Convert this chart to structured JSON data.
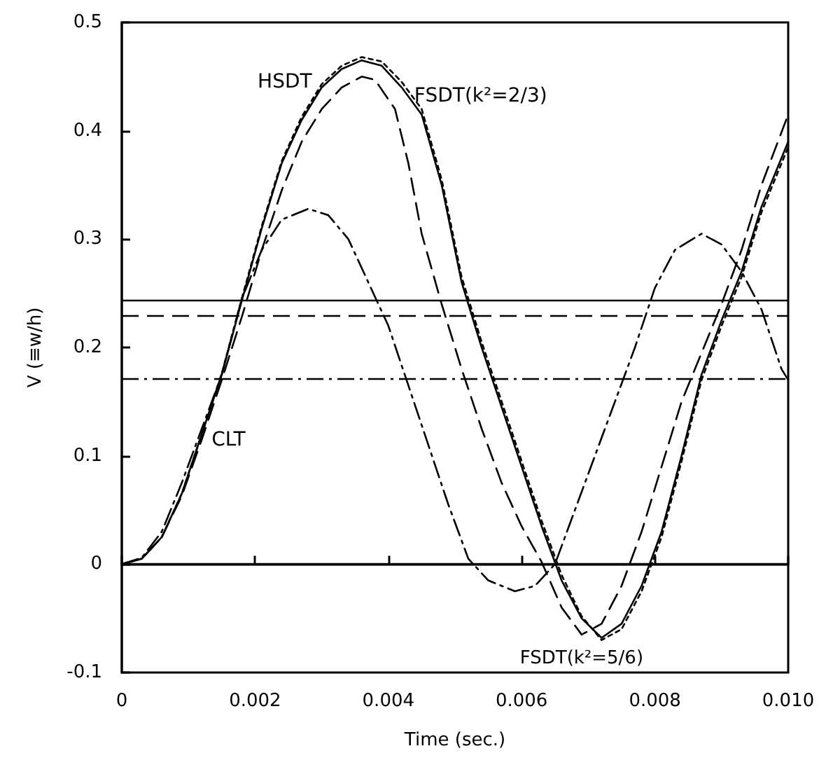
{
  "chart_data": {
    "type": "line",
    "xlabel": "Time (sec.)",
    "ylabel": "V (≡w/h)",
    "xlim": [
      0,
      0.01
    ],
    "ylim": [
      -0.1,
      0.5
    ],
    "xticks": [
      0,
      0.002,
      0.004,
      0.006,
      0.008,
      {
        "value": 0.01,
        "label": "0.010"
      }
    ],
    "yticks": [
      -0.1,
      0,
      0.1,
      0.2,
      0.3,
      0.4,
      0.5
    ],
    "grid": false,
    "legend": false,
    "marker": "none",
    "series": [
      {
        "name": "HSDT",
        "color": "#000000",
        "line_style": "solid",
        "x": [
          0,
          0.0003,
          0.0006,
          0.0009,
          0.0012,
          0.0015,
          0.0018,
          0.0021,
          0.0024,
          0.0027,
          0.003,
          0.0033,
          0.0036,
          0.0039,
          0.0042,
          0.0045,
          0.0048,
          0.0051,
          0.0054,
          0.0057,
          0.006,
          0.0063,
          0.0066,
          0.0069,
          0.0072,
          0.0075,
          0.0078,
          0.0081,
          0.0084,
          0.0087,
          0.009,
          0.0093,
          0.0096,
          0.01
        ],
        "values": [
          0,
          0.005,
          0.025,
          0.065,
          0.12,
          0.175,
          0.243,
          0.31,
          0.37,
          0.41,
          0.44,
          0.457,
          0.465,
          0.46,
          0.44,
          0.415,
          0.35,
          0.26,
          0.2,
          0.145,
          0.09,
          0.035,
          -0.015,
          -0.05,
          -0.068,
          -0.055,
          -0.02,
          0.03,
          0.1,
          0.175,
          0.225,
          0.27,
          0.33,
          0.39
        ]
      },
      {
        "name": "FSDT(k²=2/3)",
        "color": "#000000",
        "line_style": "dotted",
        "x": [
          0,
          0.0003,
          0.0006,
          0.0009,
          0.0012,
          0.0015,
          0.0018,
          0.0021,
          0.0024,
          0.0027,
          0.003,
          0.0033,
          0.0036,
          0.0039,
          0.0042,
          0.0045,
          0.0048,
          0.0051,
          0.0054,
          0.0057,
          0.006,
          0.0063,
          0.0066,
          0.0069,
          0.0072,
          0.0075,
          0.0078,
          0.0081,
          0.0084,
          0.0087,
          0.009,
          0.0093,
          0.0096,
          0.01
        ],
        "values": [
          0,
          0.005,
          0.025,
          0.065,
          0.12,
          0.176,
          0.245,
          0.312,
          0.372,
          0.413,
          0.443,
          0.46,
          0.468,
          0.464,
          0.445,
          0.42,
          0.355,
          0.265,
          0.205,
          0.15,
          0.095,
          0.04,
          -0.01,
          -0.048,
          -0.07,
          -0.06,
          -0.025,
          0.025,
          0.095,
          0.17,
          0.22,
          0.265,
          0.325,
          0.385
        ]
      },
      {
        "name": "FSDT(k²=5/6)",
        "color": "#000000",
        "line_style": "dashed",
        "x": [
          0,
          0.0003,
          0.0006,
          0.0009,
          0.0012,
          0.0015,
          0.0018,
          0.0021,
          0.0024,
          0.0027,
          0.003,
          0.0033,
          0.0036,
          0.0038,
          0.0041,
          0.0043,
          0.0045,
          0.0048,
          0.0051,
          0.0054,
          0.0057,
          0.006,
          0.0063,
          0.0066,
          0.0069,
          0.0072,
          0.0075,
          0.0078,
          0.0081,
          0.0084,
          0.0087,
          0.009,
          0.0093,
          0.0096,
          0.01
        ],
        "values": [
          0,
          0.005,
          0.025,
          0.063,
          0.115,
          0.17,
          0.228,
          0.29,
          0.345,
          0.39,
          0.42,
          0.44,
          0.45,
          0.447,
          0.42,
          0.37,
          0.305,
          0.24,
          0.18,
          0.125,
          0.075,
          0.035,
          0.002,
          -0.04,
          -0.065,
          -0.055,
          -0.02,
          0.03,
          0.09,
          0.15,
          0.195,
          0.24,
          0.29,
          0.35,
          0.415
        ]
      },
      {
        "name": "CLT",
        "color": "#000000",
        "line_style": "dashdot",
        "x": [
          0,
          0.0003,
          0.0006,
          0.0009,
          0.0012,
          0.0015,
          0.0018,
          0.0021,
          0.0024,
          0.0028,
          0.0031,
          0.0034,
          0.0037,
          0.004,
          0.0043,
          0.0046,
          0.0049,
          0.0052,
          0.0055,
          0.0059,
          0.0062,
          0.0065,
          0.0068,
          0.0071,
          0.0074,
          0.0077,
          0.008,
          0.0083,
          0.0087,
          0.009,
          0.0093,
          0.0096,
          0.0099,
          0.01
        ],
        "values": [
          0,
          0.006,
          0.03,
          0.075,
          0.125,
          0.175,
          0.245,
          0.29,
          0.318,
          0.328,
          0.322,
          0.3,
          0.26,
          0.22,
          0.165,
          0.11,
          0.055,
          0.005,
          -0.015,
          -0.025,
          -0.02,
          0,
          0.05,
          0.1,
          0.15,
          0.2,
          0.255,
          0.29,
          0.305,
          0.295,
          0.27,
          0.235,
          0.18,
          0.17
        ]
      }
    ],
    "ref_lines": [
      {
        "axis": "y",
        "value": 0,
        "color": "#000000",
        "line_style": "solid"
      },
      {
        "axis": "y",
        "value": 0.244,
        "color": "#000000",
        "line_style": "solid"
      },
      {
        "axis": "y",
        "value": 0.229,
        "color": "#000000",
        "line_style": "dashed"
      },
      {
        "axis": "y",
        "value": 0.171,
        "color": "#000000",
        "line_style": "dashdot"
      }
    ]
  }
}
